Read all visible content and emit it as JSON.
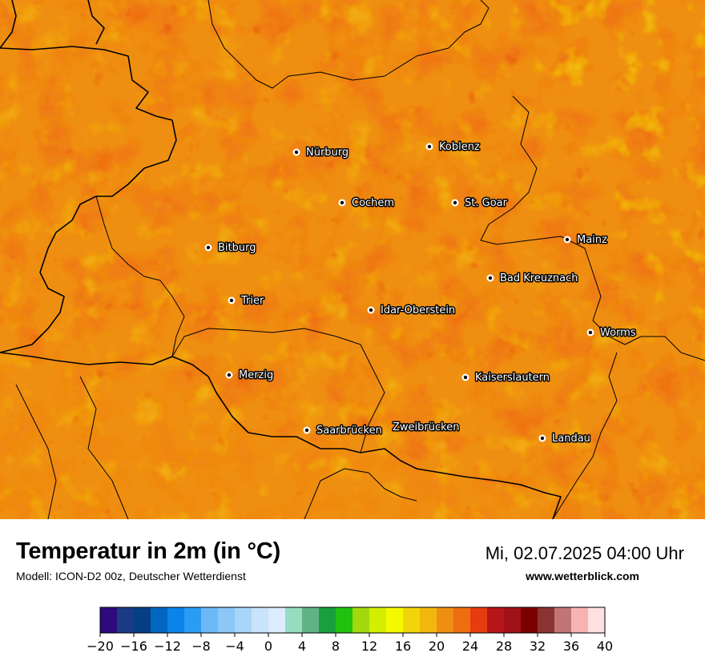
{
  "map": {
    "cities": [
      {
        "name": "Nürburg"
      },
      {
        "name": "Koblenz"
      },
      {
        "name": "Cochem"
      },
      {
        "name": "St. Goar"
      },
      {
        "name": "Bitburg"
      },
      {
        "name": "Mainz"
      },
      {
        "name": "Bad Kreuznach"
      },
      {
        "name": "Trier"
      },
      {
        "name": "Idar-Oberstein"
      },
      {
        "name": "Worms"
      },
      {
        "name": "Merzig"
      },
      {
        "name": "Kaiserslautern"
      },
      {
        "name": "Saarbrücken"
      },
      {
        "name": "Zweibrücken"
      },
      {
        "name": "Landau"
      }
    ]
  },
  "header": {
    "title": "Temperatur in 2m (in °C)",
    "model": "Modell: ICON-D2 00z, Deutscher Wetterdienst",
    "datetime": "Mi, 02.07.2025 04:00 Uhr",
    "website": "www.wetterblick.com"
  },
  "colorbar": {
    "colors": [
      "#2d0b7c",
      "#1a3a86",
      "#073f86",
      "#0066c0",
      "#0a84e8",
      "#2b9cf5",
      "#6cb9f8",
      "#8cc7f8",
      "#aad5fa",
      "#c9e3fb",
      "#dcebfd",
      "#96dcc0",
      "#5fb384",
      "#17a03b",
      "#20c20f",
      "#a2d80c",
      "#d4ee00",
      "#f5f900",
      "#f3d40a",
      "#f2b60d",
      "#ef8f12",
      "#ef6d11",
      "#e63d0f",
      "#b71518",
      "#a11218",
      "#7b0000",
      "#8b3333",
      "#c17575",
      "#f7b3b3",
      "#ffe0e0"
    ],
    "ticks": [
      "−20",
      "−16",
      "−12",
      "−8",
      "−4",
      "0",
      "4",
      "8",
      "12",
      "16",
      "20",
      "24",
      "28",
      "32",
      "36",
      "40"
    ]
  }
}
